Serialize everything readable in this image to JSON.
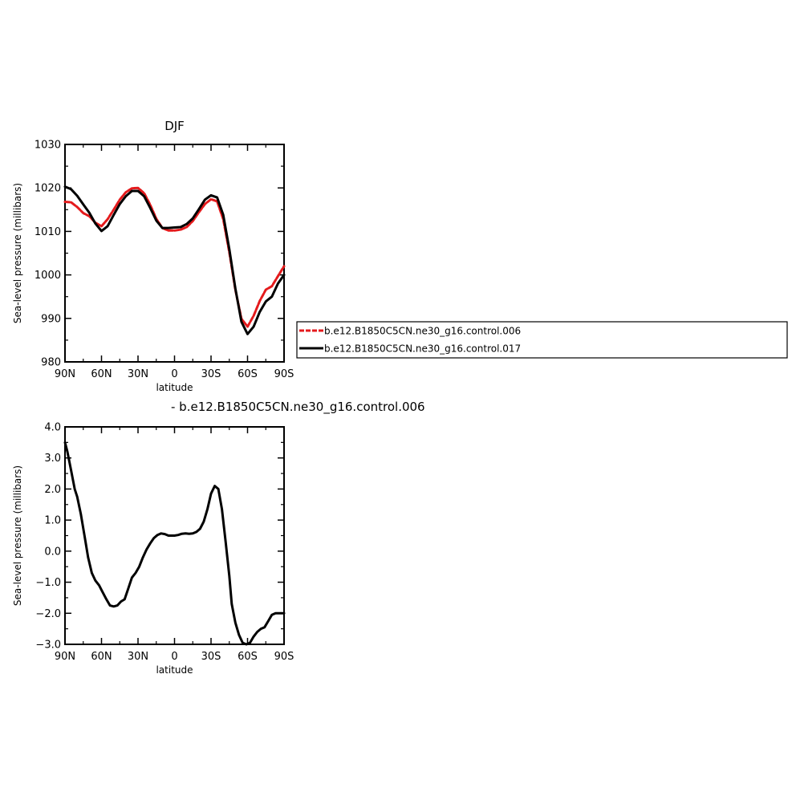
{
  "chart_data": [
    {
      "type": "line",
      "title": "DJF",
      "xlabel": "latitude",
      "ylabel": "Sea-level pressure (millibars)",
      "xlim": [
        -90,
        90
      ],
      "ylim": [
        980,
        1030
      ],
      "xticks": [
        -90,
        -60,
        -30,
        0,
        30,
        60,
        90
      ],
      "xtick_labels": [
        "90N",
        "60N",
        "30N",
        "0",
        "30S",
        "60S",
        "90S"
      ],
      "yticks": [
        980,
        990,
        1000,
        1010,
        1020,
        1030
      ],
      "ytick_labels": [
        "980",
        "990",
        "1000",
        "1010",
        "1020",
        "1030"
      ],
      "legend_position": "right",
      "series": [
        {
          "name": "b.e12.B1850C5CN.ne30_g16.control.006",
          "color": "#e41a1c",
          "dash": "dashed",
          "x": [
            -90,
            -85,
            -80,
            -75,
            -70,
            -65,
            -60,
            -55,
            -50,
            -45,
            -40,
            -35,
            -30,
            -25,
            -20,
            -15,
            -10,
            -5,
            0,
            5,
            10,
            15,
            20,
            25,
            30,
            35,
            40,
            45,
            50,
            55,
            60,
            65,
            70,
            75,
            80,
            85,
            90
          ],
          "y": [
            1016.8,
            1016.7,
            1015.6,
            1014.2,
            1013.5,
            1012.0,
            1011.2,
            1012.8,
            1015.0,
            1017.3,
            1019.0,
            1019.9,
            1020.0,
            1018.8,
            1016.1,
            1012.9,
            1010.8,
            1010.2,
            1010.2,
            1010.4,
            1011.0,
            1012.4,
            1014.4,
            1016.3,
            1017.4,
            1016.9,
            1012.8,
            1005.2,
            996.6,
            989.9,
            988.1,
            990.6,
            994.0,
            996.6,
            997.4,
            999.7,
            1002.0
          ]
        },
        {
          "name": "b.e12.B1850C5CN.ne30_g16.control.017",
          "color": "#000000",
          "dash": "solid",
          "x": [
            -90,
            -85,
            -80,
            -75,
            -70,
            -65,
            -60,
            -55,
            -50,
            -45,
            -40,
            -35,
            -30,
            -25,
            -20,
            -15,
            -10,
            -5,
            0,
            5,
            10,
            15,
            20,
            25,
            30,
            35,
            40,
            45,
            50,
            55,
            60,
            65,
            70,
            75,
            80,
            85,
            90
          ],
          "y": [
            1020.3,
            1019.7,
            1018.2,
            1016.2,
            1014.3,
            1011.8,
            1010.1,
            1011.2,
            1013.8,
            1016.3,
            1018.1,
            1019.3,
            1019.3,
            1018.1,
            1015.4,
            1012.5,
            1010.8,
            1010.8,
            1010.9,
            1011.0,
            1011.7,
            1013.0,
            1015.1,
            1017.3,
            1018.3,
            1017.8,
            1013.8,
            1005.9,
            996.9,
            989.2,
            986.4,
            988.1,
            991.5,
            993.9,
            995.0,
            998.0,
            1000.0
          ]
        }
      ]
    },
    {
      "type": "line",
      "title": "- b.e12.B1850C5CN.ne30_g16.control.006",
      "xlabel": "latitude",
      "ylabel": "Sea-level pressure (millibars)",
      "xlim": [
        -90,
        90
      ],
      "ylim": [
        -3.0,
        4.0
      ],
      "xticks": [
        -90,
        -60,
        -30,
        0,
        30,
        60,
        90
      ],
      "xtick_labels": [
        "90N",
        "60N",
        "30N",
        "0",
        "30S",
        "60S",
        "90S"
      ],
      "yticks": [
        -3,
        -2,
        -1,
        0,
        1,
        2,
        3,
        4
      ],
      "ytick_labels": [
        "−3.0",
        "−2.0",
        "−1.0",
        "0.0",
        "1.0",
        "2.0",
        "3.0",
        "4.0"
      ],
      "series": [
        {
          "color": "#000000",
          "dash": "solid",
          "x": [
            -90,
            -88,
            -85,
            -82,
            -80,
            -77,
            -74,
            -71,
            -68,
            -65,
            -62,
            -60,
            -56,
            -53,
            -50,
            -47,
            -44,
            -41,
            -38,
            -35,
            -32,
            -29,
            -26,
            -23,
            -20,
            -17,
            -14,
            -11,
            -8,
            -5,
            -2,
            0,
            3,
            6,
            9,
            12,
            15,
            18,
            21,
            24,
            27,
            30,
            33,
            36,
            39,
            42,
            45,
            47,
            50,
            53,
            56,
            59,
            62,
            65,
            68,
            71,
            74,
            77,
            80,
            83,
            86,
            88,
            90
          ],
          "y": [
            3.5,
            3.2,
            2.6,
            2.0,
            1.75,
            1.2,
            0.5,
            -0.2,
            -0.7,
            -0.95,
            -1.1,
            -1.25,
            -1.55,
            -1.75,
            -1.78,
            -1.75,
            -1.62,
            -1.55,
            -1.2,
            -0.85,
            -0.7,
            -0.5,
            -0.2,
            0.05,
            0.25,
            0.42,
            0.52,
            0.57,
            0.55,
            0.5,
            0.5,
            0.5,
            0.52,
            0.56,
            0.57,
            0.56,
            0.57,
            0.62,
            0.72,
            0.95,
            1.35,
            1.85,
            2.1,
            2.0,
            1.35,
            0.3,
            -0.8,
            -1.7,
            -2.3,
            -2.7,
            -2.95,
            -3.0,
            -2.95,
            -2.75,
            -2.6,
            -2.5,
            -2.45,
            -2.25,
            -2.05,
            -2.0,
            -2.0,
            -2.0,
            -2.0
          ]
        }
      ]
    }
  ]
}
